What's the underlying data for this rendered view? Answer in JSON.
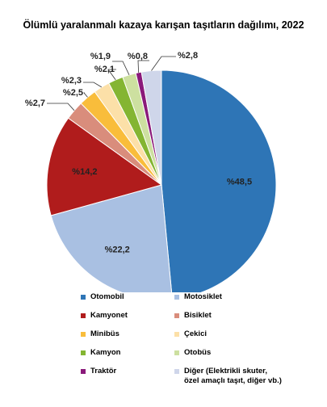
{
  "title": "Ölümlü yaralanmalı kazaya karışan taşıtların dağılımı, 2022",
  "chart_data": {
    "type": "pie",
    "title": "Ölümlü yaralanmalı kazaya karışan taşıtların dağılımı, 2022",
    "slices": [
      {
        "name": "Otomobil",
        "value": 48.5,
        "label": "%48,5",
        "color": "#2e75b6"
      },
      {
        "name": "Motosiklet",
        "value": 22.2,
        "label": "%22,2",
        "color": "#a9c0e2"
      },
      {
        "name": "Kamyonet",
        "value": 14.2,
        "label": "%14,2",
        "color": "#b01c1c"
      },
      {
        "name": "Bisiklet",
        "value": 2.7,
        "label": "%2,7",
        "color": "#d98d7c"
      },
      {
        "name": "Minibüs",
        "value": 2.5,
        "label": "%2,5",
        "color": "#f9bd3b"
      },
      {
        "name": "Çekici",
        "value": 2.3,
        "label": "%2,3",
        "color": "#fce0a8"
      },
      {
        "name": "Kamyon",
        "value": 2.1,
        "label": "%2,1",
        "color": "#84b532"
      },
      {
        "name": "Otobüs",
        "value": 1.9,
        "label": "%1,9",
        "color": "#cde0a0"
      },
      {
        "name": "Traktör",
        "value": 0.8,
        "label": "%0,8",
        "color": "#8a1a7a"
      },
      {
        "name": "Diğer (Elektrikli skuter,\nözel amaçlı taşıt, diğer vb.)",
        "value": 2.8,
        "label": "%2,8",
        "color": "#cfd6ea"
      }
    ],
    "legend_placement": "bottom"
  }
}
